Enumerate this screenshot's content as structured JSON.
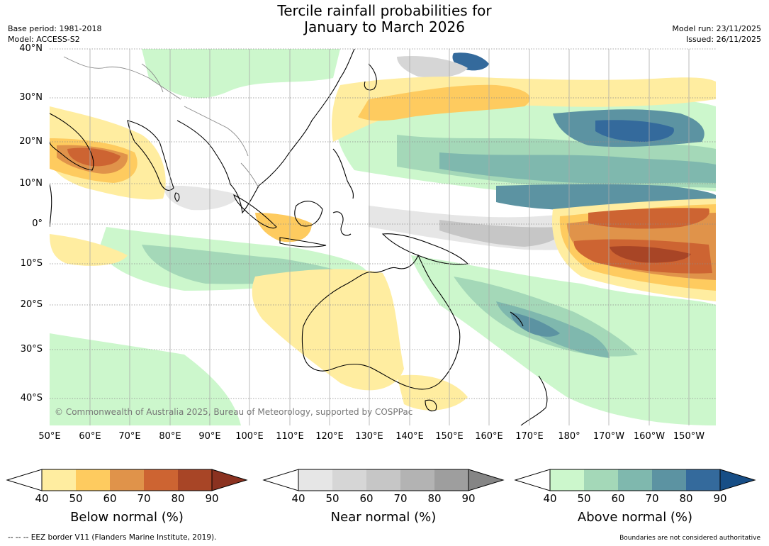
{
  "title": {
    "line1": "Tercile rainfall probabilities for",
    "line2": "January to March 2026"
  },
  "meta": {
    "base_period": "Base period: 1981-2018",
    "model": "Model: ACCESS-S2",
    "model_run": "Model run: 23/11/2025",
    "issued": "Issued: 26/11/2025"
  },
  "map": {
    "lat_labels": [
      "40°N",
      "30°N",
      "20°N",
      "10°N",
      "0°",
      "10°S",
      "20°S",
      "30°S",
      "40°S"
    ],
    "lon_labels": [
      "50°E",
      "60°E",
      "70°E",
      "80°E",
      "90°E",
      "100°E",
      "110°E",
      "120°E",
      "130°E",
      "140°E",
      "150°E",
      "160°E",
      "170°E",
      "180°",
      "170°W",
      "160°W",
      "150°W"
    ],
    "copyright": "© Commonwealth of Australia 2025, Bureau of Meteorology, supported by COSPPac",
    "regions": [
      {
        "category": "below",
        "level": 2
      },
      {
        "category": "below",
        "level": 3
      },
      {
        "category": "below",
        "level": 4
      },
      {
        "category": "below",
        "level": 5
      },
      {
        "category": "near",
        "level": 1
      },
      {
        "category": "near",
        "level": 2
      },
      {
        "category": "above",
        "level": 1
      },
      {
        "category": "above",
        "level": 2
      },
      {
        "category": "above",
        "level": 3
      },
      {
        "category": "above",
        "level": 4
      },
      {
        "category": "above",
        "level": 5
      }
    ]
  },
  "colorbars": [
    {
      "label": "Below normal (%)",
      "ticks": [
        "40",
        "50",
        "60",
        "70",
        "80",
        "90"
      ],
      "colors": [
        "#ffeda0",
        "#fecb5f",
        "#e0934a",
        "#cd6432",
        "#a84526"
      ],
      "end_color": "#8b3220"
    },
    {
      "label": "Near normal (%)",
      "ticks": [
        "40",
        "50",
        "60",
        "70",
        "80",
        "90"
      ],
      "colors": [
        "#e6e6e6",
        "#d6d6d6",
        "#c6c6c6",
        "#b3b3b3",
        "#9e9e9e"
      ],
      "end_color": "#858585"
    },
    {
      "label": "Above normal (%)",
      "ticks": [
        "40",
        "50",
        "60",
        "70",
        "80",
        "90"
      ],
      "colors": [
        "#ccf7cc",
        "#a4d8b8",
        "#7fb8ae",
        "#5c93a2",
        "#346a9c"
      ],
      "end_color": "#174e86"
    }
  ],
  "footer": {
    "eez_note": "--  --  -- EEZ border V11 (Flanders Marine Institute, 2019).",
    "boundary_note": "Boundaries are not considered authoritative"
  }
}
